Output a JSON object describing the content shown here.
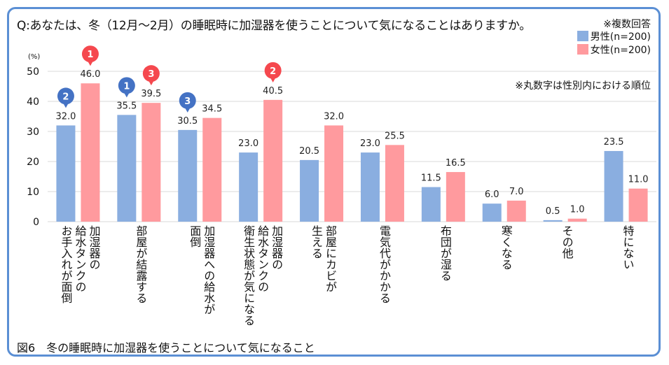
{
  "question": "Q:あなたは、冬（12月～2月）の睡眠時に加湿器を使うことについて気になることはありますか。",
  "note_multiple": "※複数回答",
  "note_rank": "※丸数字は性別内における順位",
  "caption": "図6　冬の睡眠時に加湿器を使うことについて気になること",
  "colors": {
    "male": "#8aaee0",
    "female": "#ff9a9e",
    "rank_male": "#4472c4",
    "rank_female": "#f5484e",
    "frame": "#5b8fd4",
    "grid": "#d9d9d9"
  },
  "chart_data": {
    "type": "bar",
    "title": "冬の睡眠時に加湿器を使うことについて気になること",
    "ylabel": "(%)",
    "ylim": [
      0,
      50
    ],
    "yticks": [
      "0",
      "10",
      "20",
      "30",
      "40",
      "50"
    ],
    "ytick_values": [
      0,
      10,
      20,
      30,
      40,
      50
    ],
    "grid": true,
    "legend_position": "top-right",
    "categories": [
      "加湿器の\n給水タンクの\nお手入れが面倒",
      "部屋が結露する",
      "加湿器への給水が\n面倒",
      "加湿器の\n給水タンクの\n衛生状態が気になる",
      "部屋にカビが\n生える",
      "電気代がかかる",
      "布団が湿る",
      "寒くなる",
      "その他",
      "特にない"
    ],
    "series": [
      {
        "name": "男性(n=200)",
        "key": "male",
        "values": [
          32.0,
          35.5,
          30.5,
          23.0,
          20.5,
          23.0,
          11.5,
          6.0,
          0.5,
          23.5
        ],
        "labels": [
          "32.0",
          "35.5",
          "30.5",
          "23.0",
          "20.5",
          "23.0",
          "11.5",
          "6.0",
          "0.5",
          "23.5"
        ],
        "ranks": [
          "2",
          "1",
          "3",
          null,
          null,
          null,
          null,
          null,
          null,
          null
        ]
      },
      {
        "name": "女性(n=200)",
        "key": "female",
        "values": [
          46.0,
          39.5,
          34.5,
          40.5,
          32.0,
          25.5,
          16.5,
          7.0,
          1.0,
          11.0
        ],
        "labels": [
          "46.0",
          "39.5",
          "34.5",
          "40.5",
          "32.0",
          "25.5",
          "16.5",
          "7.0",
          "1.0",
          "11.0"
        ],
        "ranks": [
          "1",
          "3",
          null,
          "2",
          null,
          null,
          null,
          null,
          null,
          null
        ]
      }
    ]
  }
}
